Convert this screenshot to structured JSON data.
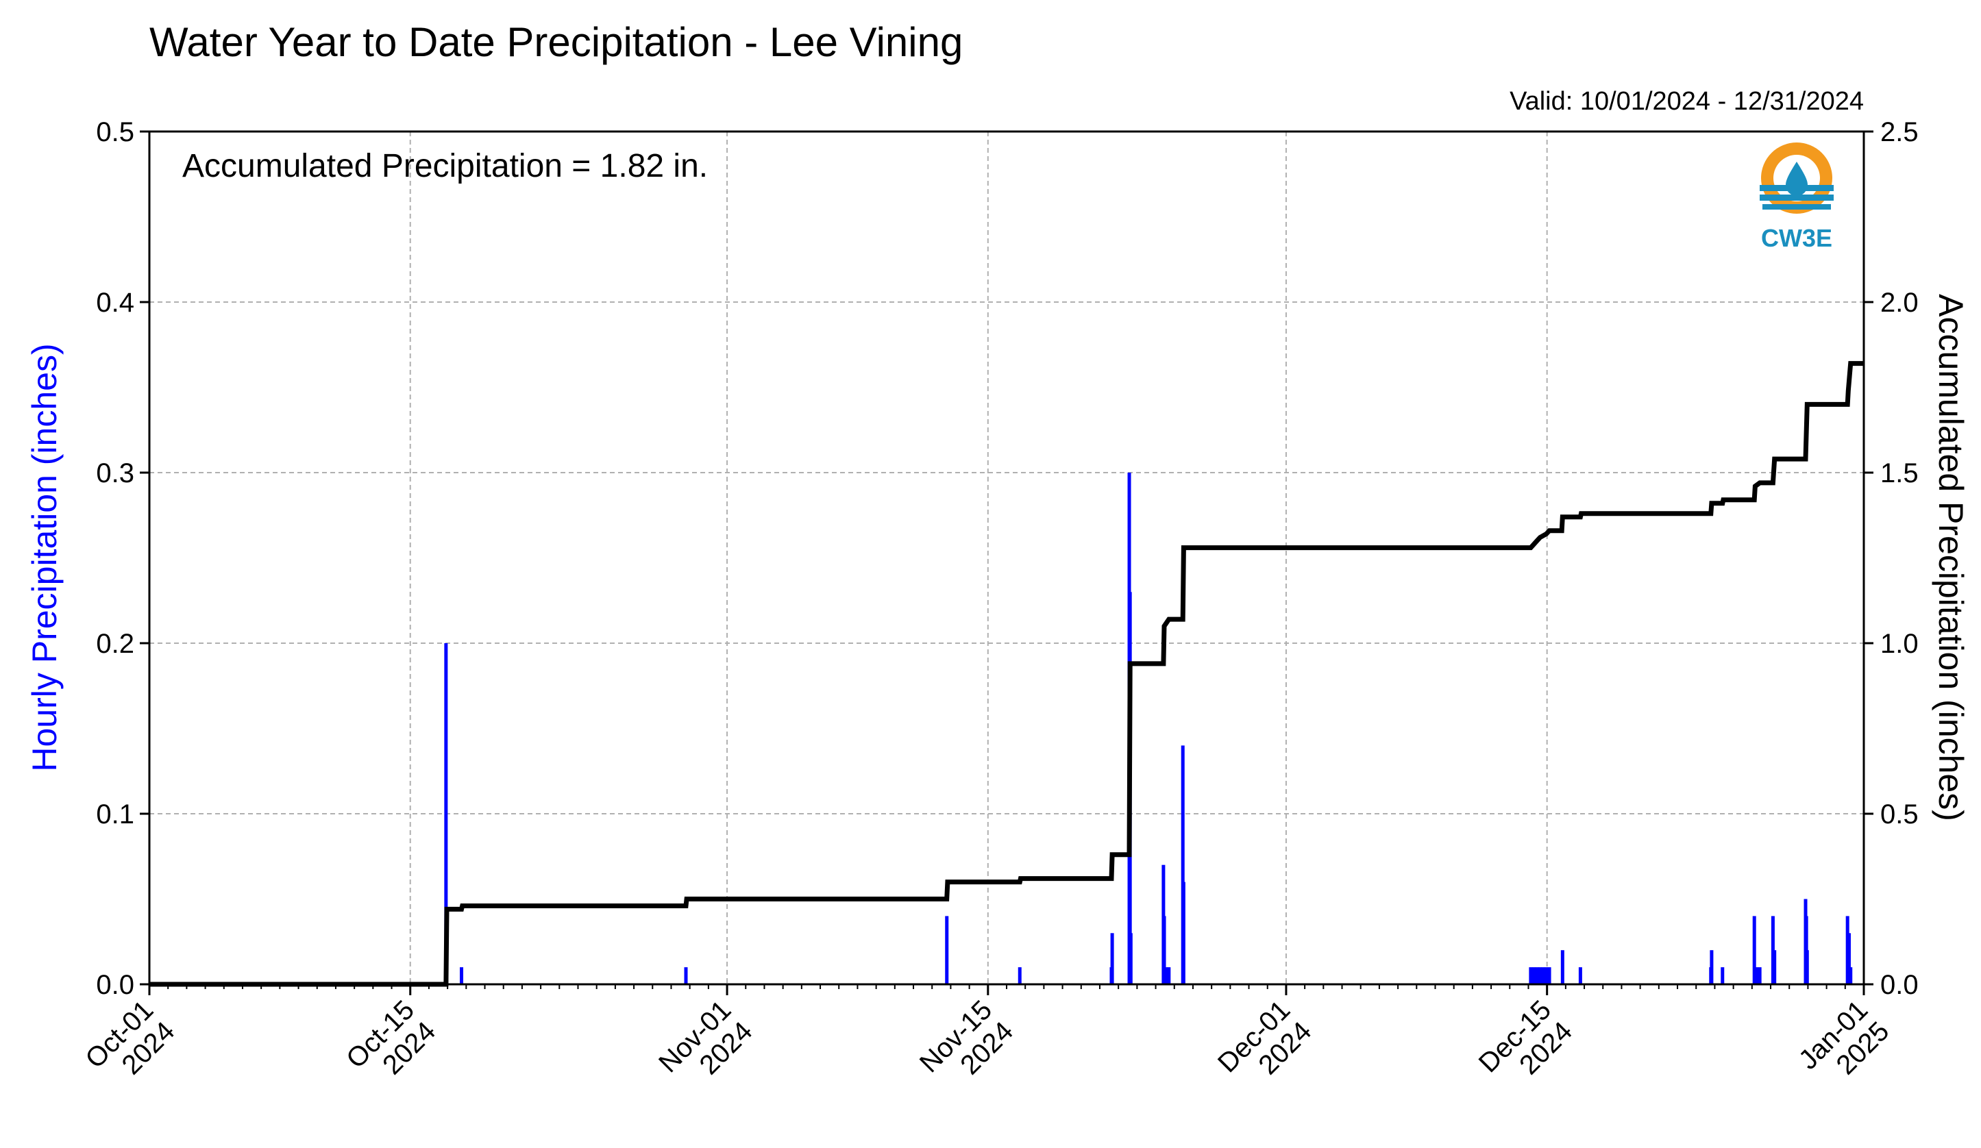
{
  "chart_data": {
    "type": "bar+line",
    "title": "Water Year to Date Precipitation - Lee Vining",
    "subtitle": "Valid: 10/01/2024 - 12/31/2024",
    "annotation": "Accumulated Precipitation = 1.82 in.",
    "logo_text": "CW3E",
    "ylabel_left": "Hourly Precipitation (inches)",
    "ylabel_right": "Accumulated Precipitation (inches)",
    "ylim_left": [
      0,
      0.5
    ],
    "ylim_right": [
      0,
      2.5
    ],
    "xlim": [
      "2024-10-01",
      "2025-01-01"
    ],
    "yticks_left": [
      "0.0",
      "0.1",
      "0.2",
      "0.3",
      "0.4",
      "0.5"
    ],
    "yticks_right": [
      "0.0",
      "0.5",
      "1.0",
      "1.5",
      "2.0",
      "2.5"
    ],
    "xticks": [
      {
        "date": "2024-10-01",
        "line1": "Oct-01",
        "line2": "2024"
      },
      {
        "date": "2024-10-15",
        "line1": "Oct-15",
        "line2": "2024"
      },
      {
        "date": "2024-11-01",
        "line1": "Nov-01",
        "line2": "2024"
      },
      {
        "date": "2024-11-15",
        "line1": "Nov-15",
        "line2": "2024"
      },
      {
        "date": "2024-12-01",
        "line1": "Dec-01",
        "line2": "2024"
      },
      {
        "date": "2024-12-15",
        "line1": "Dec-15",
        "line2": "2024"
      },
      {
        "date": "2025-01-01",
        "line1": "Jan-01",
        "line2": "2025"
      }
    ],
    "grid": true,
    "colors": {
      "hourly": "#0000ff",
      "accumulated": "#000000",
      "grid": "#b0b0b0",
      "logo_orange": "#f39a1e",
      "logo_blue": "#1a8fbf"
    },
    "hourly_series": {
      "name": "Hourly Precipitation",
      "points": [
        [
          "2024-10-16T22:00",
          0.2
        ],
        [
          "2024-10-17T18:00",
          0.01
        ],
        [
          "2024-10-29T19:00",
          0.01
        ],
        [
          "2024-11-12T19:00",
          0.04
        ],
        [
          "2024-11-16T17:00",
          0.01
        ],
        [
          "2024-11-21T15:00",
          0.01
        ],
        [
          "2024-11-21T16:00",
          0.03
        ],
        [
          "2024-11-22T14:00",
          0.3
        ],
        [
          "2024-11-22T15:00",
          0.23
        ],
        [
          "2024-11-22T16:00",
          0.03
        ],
        [
          "2024-11-24T10:00",
          0.07
        ],
        [
          "2024-11-24T11:00",
          0.04
        ],
        [
          "2024-11-24T14:00",
          0.01
        ],
        [
          "2024-11-24T17:00",
          0.01
        ],
        [
          "2024-11-25T11:00",
          0.14
        ],
        [
          "2024-11-25T12:00",
          0.06
        ],
        [
          "2024-12-14T03:00",
          0.01
        ],
        [
          "2024-12-14T07:00",
          0.01
        ],
        [
          "2024-12-14T11:00",
          0.01
        ],
        [
          "2024-12-14T15:00",
          0.01
        ],
        [
          "2024-12-14T19:00",
          0.01
        ],
        [
          "2024-12-14T23:00",
          0.01
        ],
        [
          "2024-12-15T03:00",
          0.01
        ],
        [
          "2024-12-15T20:00",
          0.02
        ],
        [
          "2024-12-16T19:00",
          0.01
        ],
        [
          "2024-12-23T19:00",
          0.01
        ],
        [
          "2024-12-23T20:00",
          0.02
        ],
        [
          "2024-12-24T10:00",
          0.01
        ],
        [
          "2024-12-26T03:00",
          0.04
        ],
        [
          "2024-12-26T06:00",
          0.01
        ],
        [
          "2024-12-26T10:00",
          0.01
        ],
        [
          "2024-12-27T03:00",
          0.04
        ],
        [
          "2024-12-27T05:00",
          0.02
        ],
        [
          "2024-12-28T21:00",
          0.05
        ],
        [
          "2024-12-28T22:00",
          0.04
        ],
        [
          "2024-12-28T23:00",
          0.02
        ],
        [
          "2024-12-31T03:00",
          0.04
        ],
        [
          "2024-12-31T05:00",
          0.03
        ],
        [
          "2024-12-31T07:00",
          0.01
        ]
      ]
    },
    "accumulated_series": {
      "name": "Accumulated Precipitation",
      "points": [
        [
          "2024-10-01T00:00",
          0.0
        ],
        [
          "2024-10-16T22:00",
          0.0
        ],
        [
          "2024-10-16T23:00",
          0.22
        ],
        [
          "2024-10-17T18:00",
          0.22
        ],
        [
          "2024-10-17T19:00",
          0.23
        ],
        [
          "2024-10-29T19:00",
          0.23
        ],
        [
          "2024-10-29T20:00",
          0.25
        ],
        [
          "2024-11-12T19:00",
          0.25
        ],
        [
          "2024-11-12T20:00",
          0.3
        ],
        [
          "2024-11-16T17:00",
          0.3
        ],
        [
          "2024-11-16T18:00",
          0.31
        ],
        [
          "2024-11-21T15:00",
          0.31
        ],
        [
          "2024-11-21T16:00",
          0.38
        ],
        [
          "2024-11-22T14:00",
          0.38
        ],
        [
          "2024-11-22T15:00",
          0.94
        ],
        [
          "2024-11-24T10:00",
          0.94
        ],
        [
          "2024-11-24T11:00",
          1.05
        ],
        [
          "2024-11-24T14:00",
          1.06
        ],
        [
          "2024-11-24T17:00",
          1.07
        ],
        [
          "2024-11-25T11:00",
          1.07
        ],
        [
          "2024-11-25T12:00",
          1.28
        ],
        [
          "2024-12-14T03:00",
          1.28
        ],
        [
          "2024-12-14T07:00",
          1.29
        ],
        [
          "2024-12-14T11:00",
          1.3
        ],
        [
          "2024-12-14T15:00",
          1.31
        ],
        [
          "2024-12-14T23:00",
          1.32
        ],
        [
          "2024-12-15T03:00",
          1.33
        ],
        [
          "2024-12-15T19:00",
          1.33
        ],
        [
          "2024-12-15T20:00",
          1.37
        ],
        [
          "2024-12-16T19:00",
          1.37
        ],
        [
          "2024-12-16T20:00",
          1.38
        ],
        [
          "2024-12-23T19:00",
          1.38
        ],
        [
          "2024-12-23T20:00",
          1.41
        ],
        [
          "2024-12-24T10:00",
          1.41
        ],
        [
          "2024-12-24T11:00",
          1.42
        ],
        [
          "2024-12-26T03:00",
          1.42
        ],
        [
          "2024-12-26T04:00",
          1.46
        ],
        [
          "2024-12-26T10:00",
          1.47
        ],
        [
          "2024-12-27T03:00",
          1.47
        ],
        [
          "2024-12-27T05:00",
          1.54
        ],
        [
          "2024-12-28T21:00",
          1.54
        ],
        [
          "2024-12-28T23:00",
          1.7
        ],
        [
          "2024-12-31T03:00",
          1.7
        ],
        [
          "2024-12-31T04:00",
          1.74
        ],
        [
          "2024-12-31T07:00",
          1.82
        ],
        [
          "2024-12-31T23:00",
          1.82
        ]
      ]
    }
  }
}
